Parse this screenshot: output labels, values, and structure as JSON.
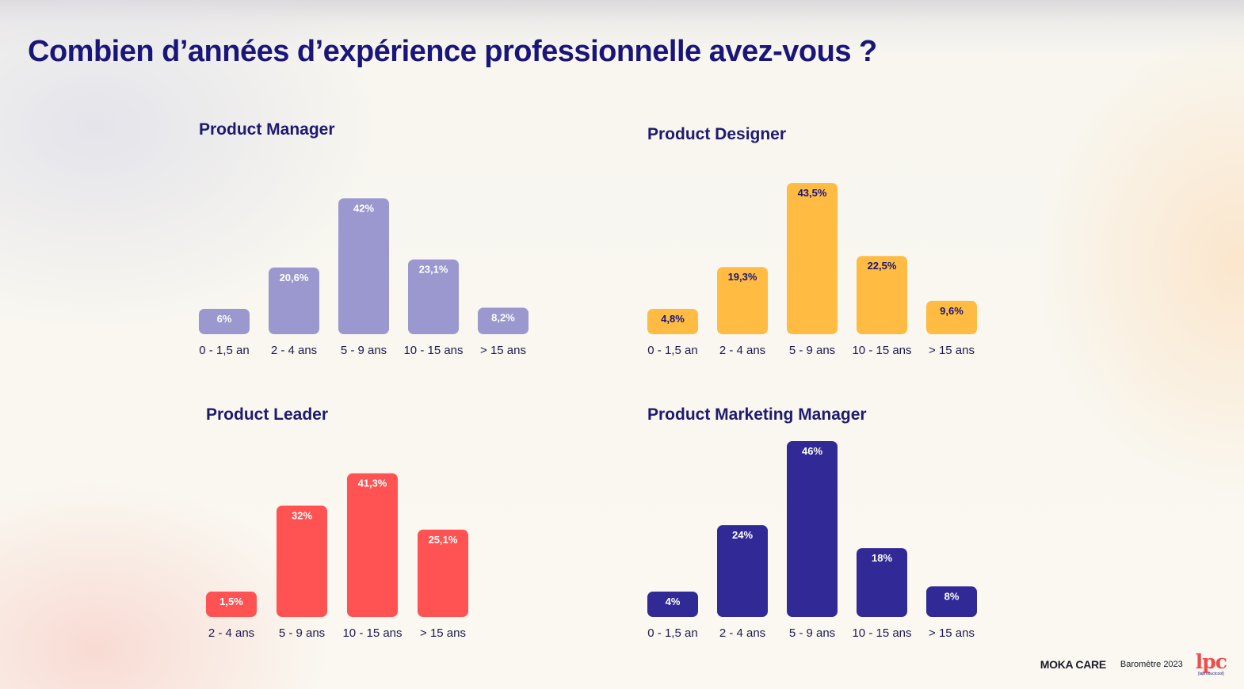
{
  "page": {
    "title": "Combien d’années d’expérience professionnelle avez-vous ?"
  },
  "footer": {
    "brand": "MOKA CARE",
    "text": "Baromètre 2023",
    "logo": "lpc",
    "logo_sub": "[laproductcool]"
  },
  "chart_data": [
    {
      "type": "bar",
      "title": "Product Manager",
      "color": "#9b98cf",
      "label_color": "#ffffff",
      "categories": [
        "0 - 1,5 an",
        "2 - 4 ans",
        "5 - 9 ans",
        "10 - 15 ans",
        "> 15 ans"
      ],
      "values": [
        6,
        20.6,
        42,
        23.1,
        8.2
      ],
      "data_labels": [
        "6%",
        "20,6%",
        "42%",
        "23,1%",
        "8,2%"
      ],
      "ylim": [
        0,
        46
      ]
    },
    {
      "type": "bar",
      "title": "Product Designer",
      "color": "#ffbb42",
      "label_color": "#1a1578",
      "categories": [
        "0 - 1,5 an",
        "2 - 4 ans",
        "5 - 9 ans",
        "10 - 15 ans",
        "> 15 ans"
      ],
      "values": [
        4.8,
        19.3,
        43.5,
        22.5,
        9.6
      ],
      "data_labels": [
        "4,8%",
        "19,3%",
        "43,5%",
        "22,5%",
        "9,6%"
      ],
      "ylim": [
        0,
        46
      ]
    },
    {
      "type": "bar",
      "title": "Product Leader",
      "color": "#ff5252",
      "label_color": "#ffffff",
      "categories": [
        "2 - 4 ans",
        "5 - 9 ans",
        "10 - 15 ans",
        "> 15 ans"
      ],
      "values": [
        1.5,
        32,
        41.3,
        25.1
      ],
      "data_labels": [
        "1,5%",
        "32%",
        "41,3%",
        "25,1%"
      ],
      "ylim": [
        0,
        46
      ]
    },
    {
      "type": "bar",
      "title": "Product Marketing Manager",
      "color": "#312a96",
      "label_color": "#ffffff",
      "categories": [
        "0 - 1,5 an",
        "2 - 4 ans",
        "5 - 9 ans",
        "10 - 15 ans",
        "> 15 ans"
      ],
      "values": [
        4,
        24,
        46,
        18,
        8
      ],
      "data_labels": [
        "4%",
        "24%",
        "46%",
        "18%",
        "8%"
      ],
      "ylim": [
        0,
        46
      ]
    }
  ]
}
